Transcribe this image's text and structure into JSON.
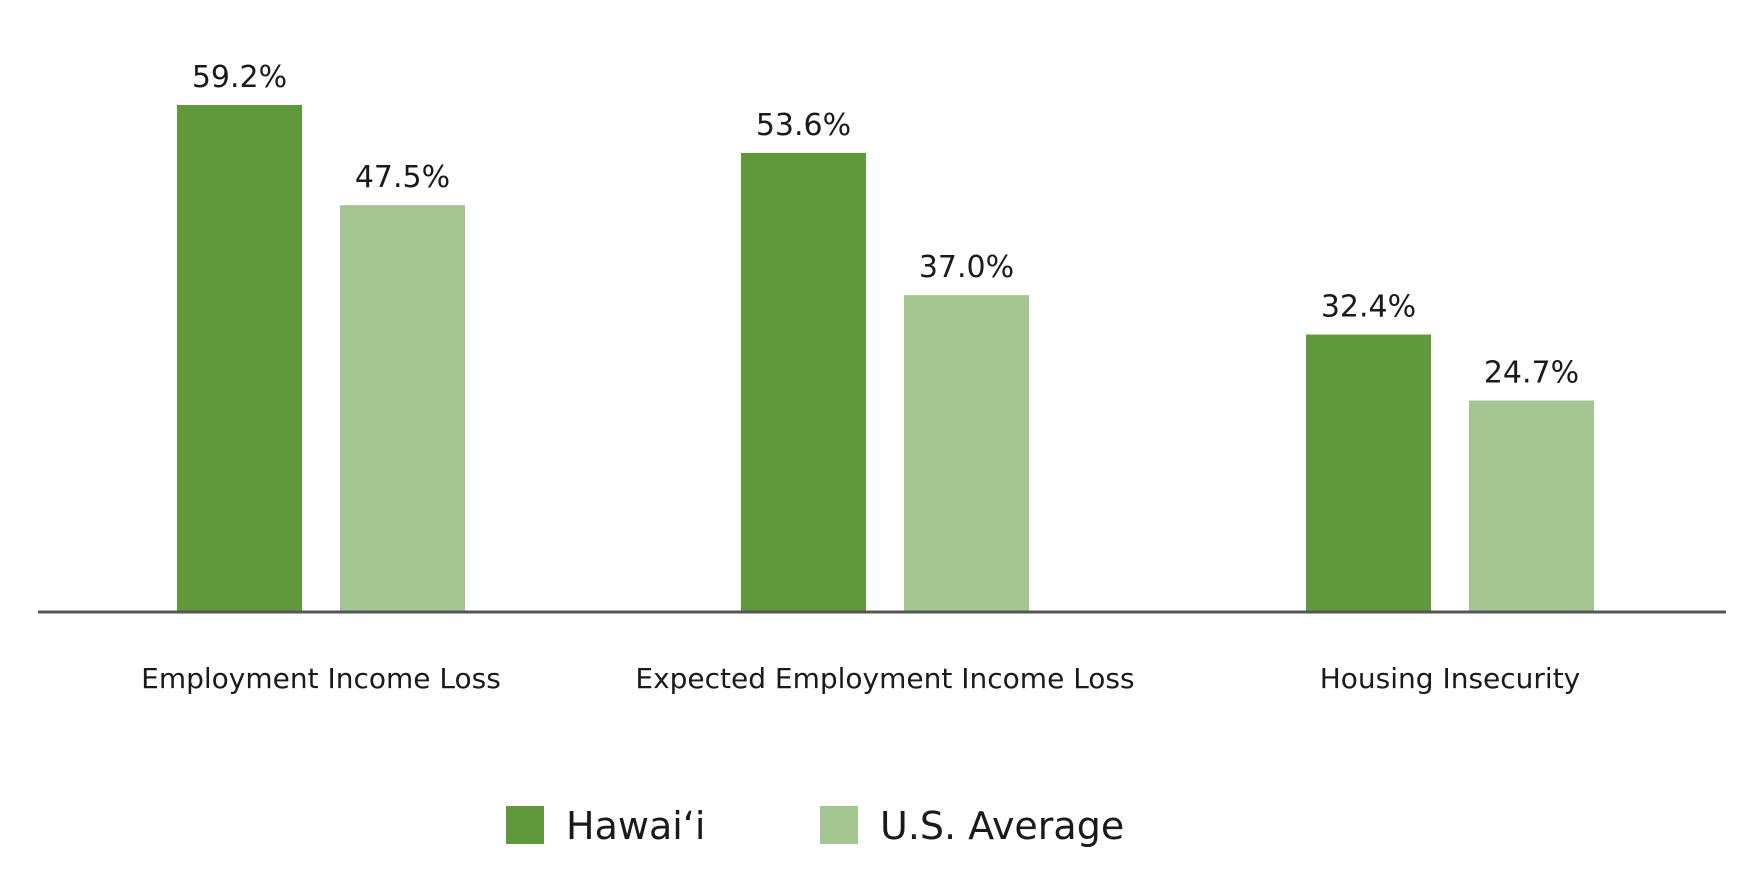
{
  "chart_data": {
    "type": "bar",
    "categories": [
      "Employment Income Loss",
      "Expected Employment Income Loss",
      "Housing Insecurity"
    ],
    "series": [
      {
        "name": "Hawai‘i",
        "values": [
          59.2,
          53.6,
          32.4
        ],
        "labels": [
          "59.2%",
          "53.6%",
          "32.4%"
        ],
        "color": "#5f993b"
      },
      {
        "name": "U.S. Average",
        "values": [
          47.5,
          37.0,
          24.7
        ],
        "labels": [
          "47.5%",
          "37.0%",
          "24.7%"
        ],
        "color": "#a4c492"
      }
    ],
    "ylim": [
      0,
      60
    ],
    "grid": false,
    "legend_position": "bottom-center",
    "axis_color": "#555555"
  }
}
